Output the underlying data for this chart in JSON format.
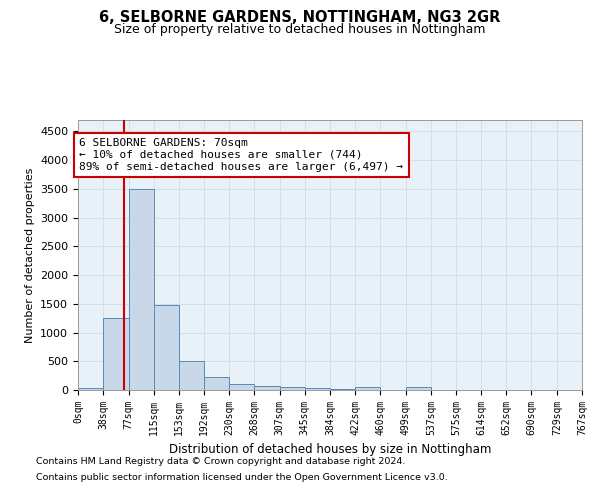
{
  "title1": "6, SELBORNE GARDENS, NOTTINGHAM, NG3 2GR",
  "title2": "Size of property relative to detached houses in Nottingham",
  "xlabel": "Distribution of detached houses by size in Nottingham",
  "ylabel": "Number of detached properties",
  "footnote1": "Contains HM Land Registry data © Crown copyright and database right 2024.",
  "footnote2": "Contains public sector information licensed under the Open Government Licence v3.0.",
  "bar_edges": [
    0,
    38,
    77,
    115,
    153,
    192,
    230,
    268,
    307,
    345,
    384,
    422,
    460,
    499,
    537,
    575,
    614,
    652,
    690,
    729,
    767
  ],
  "bar_heights": [
    30,
    1250,
    3500,
    1480,
    500,
    220,
    105,
    75,
    50,
    30,
    20,
    50,
    0,
    50,
    0,
    0,
    0,
    0,
    0,
    0
  ],
  "bar_color": "#c8d8e8",
  "bar_edge_color": "#5a8ab5",
  "grid_color": "#d0dfe8",
  "bg_color": "#e8f0f8",
  "property_line_x": 70,
  "property_line_color": "#cc0000",
  "annotation_line1": "6 SELBORNE GARDENS: 70sqm",
  "annotation_line2": "← 10% of detached houses are smaller (744)",
  "annotation_line3": "89% of semi-detached houses are larger (6,497) →",
  "annotation_box_color": "#cc0000",
  "ylim": [
    0,
    4700
  ],
  "yticks": [
    0,
    500,
    1000,
    1500,
    2000,
    2500,
    3000,
    3500,
    4000,
    4500
  ],
  "tick_labels": [
    "0sqm",
    "38sqm",
    "77sqm",
    "115sqm",
    "153sqm",
    "192sqm",
    "230sqm",
    "268sqm",
    "307sqm",
    "345sqm",
    "384sqm",
    "422sqm",
    "460sqm",
    "499sqm",
    "537sqm",
    "575sqm",
    "614sqm",
    "652sqm",
    "690sqm",
    "729sqm",
    "767sqm"
  ]
}
